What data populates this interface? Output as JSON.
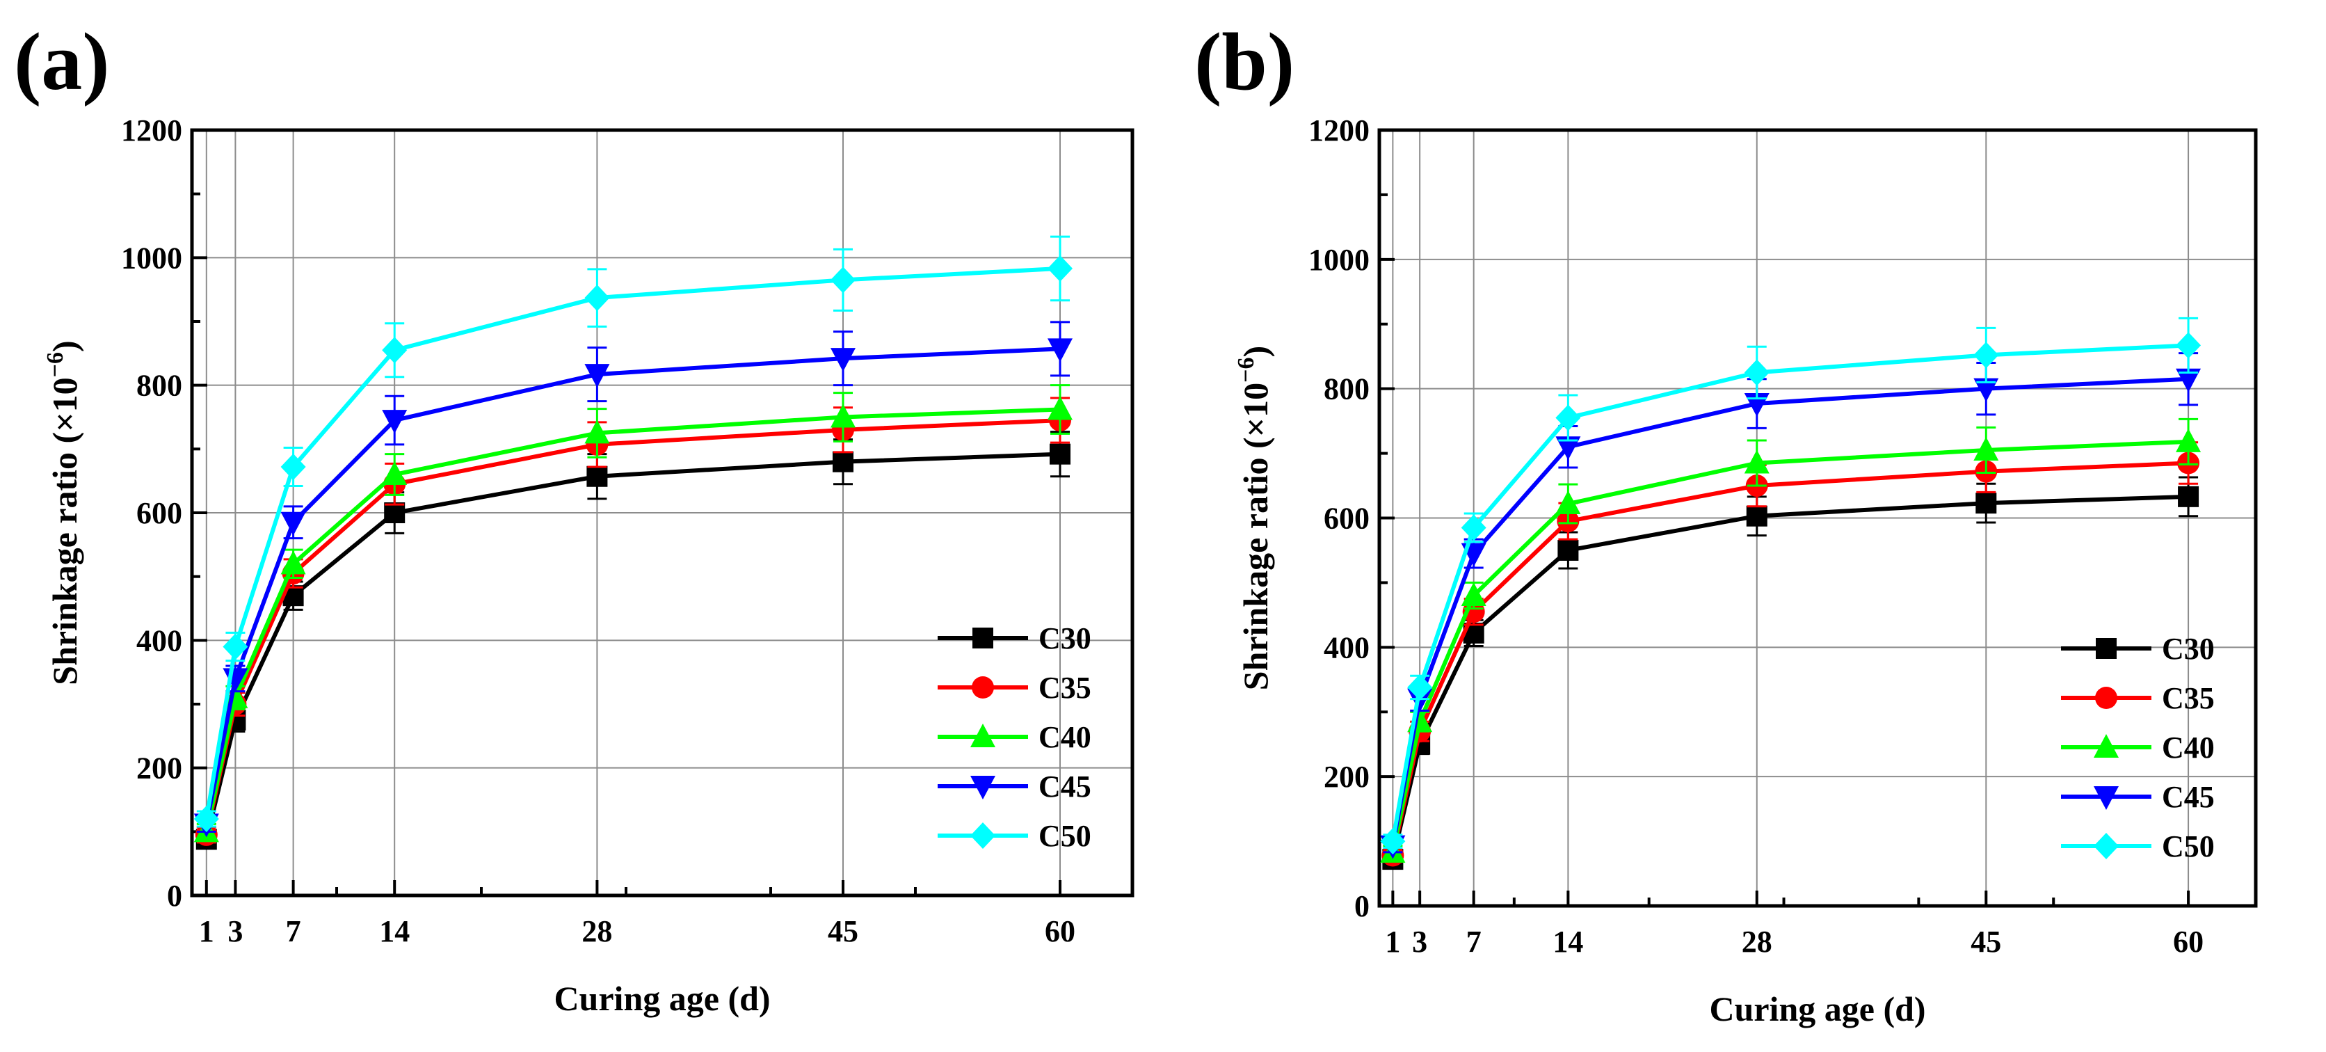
{
  "chart_data": [
    {
      "type": "line",
      "panel_label": "(a)",
      "xlabel": "Curing age (d)",
      "ylabel": "Shrinkage ratio (×10",
      "ylabel_exp": "−6",
      "ylabel_end": ")",
      "x": [
        1,
        3,
        7,
        14,
        28,
        45,
        60
      ],
      "xticks": [
        1,
        3,
        7,
        14,
        28,
        45,
        60
      ],
      "xlim": [
        0,
        65
      ],
      "ylim": [
        0,
        1200
      ],
      "yticks": [
        0,
        200,
        400,
        600,
        800,
        1000,
        1200
      ],
      "grid": true,
      "legend_position": "bottom-right",
      "series": [
        {
          "name": "C30",
          "color": "#000000",
          "marker": "square",
          "values": [
            88,
            275,
            470,
            600,
            657,
            680,
            692
          ],
          "errors": [
            12,
            18,
            22,
            32,
            35,
            35,
            35
          ]
        },
        {
          "name": "C35",
          "color": "#ff0000",
          "marker": "circle",
          "values": [
            95,
            300,
            505,
            645,
            707,
            730,
            745
          ],
          "errors": [
            12,
            18,
            22,
            32,
            35,
            35,
            35
          ]
        },
        {
          "name": "C40",
          "color": "#00ff00",
          "marker": "triangle-up",
          "values": [
            100,
            310,
            520,
            660,
            725,
            750,
            762
          ],
          "errors": [
            12,
            18,
            22,
            32,
            38,
            38,
            38
          ]
        },
        {
          "name": "C45",
          "color": "#0000ff",
          "marker": "triangle-down",
          "values": [
            112,
            340,
            585,
            745,
            817,
            842,
            857
          ],
          "errors": [
            12,
            20,
            25,
            38,
            42,
            42,
            42
          ]
        },
        {
          "name": "C50",
          "color": "#00ffff",
          "marker": "diamond",
          "values": [
            120,
            390,
            672,
            855,
            937,
            965,
            983
          ],
          "errors": [
            12,
            22,
            30,
            42,
            45,
            48,
            50
          ]
        }
      ]
    },
    {
      "type": "line",
      "panel_label": "(b)",
      "xlabel": "Curing age (d)",
      "ylabel": "Shrinkage ratio (×10",
      "ylabel_exp": "−6",
      "ylabel_end": ")",
      "x": [
        1,
        3,
        7,
        14,
        28,
        45,
        60
      ],
      "xticks": [
        1,
        3,
        7,
        14,
        28,
        45,
        60
      ],
      "xlim": [
        0,
        65
      ],
      "ylim": [
        0,
        1200
      ],
      "yticks": [
        0,
        200,
        400,
        600,
        800,
        1000,
        1200
      ],
      "grid": true,
      "legend_position": "bottom-right",
      "series": [
        {
          "name": "C30",
          "color": "#000000",
          "marker": "square",
          "values": [
            72,
            250,
            422,
            550,
            603,
            623,
            633
          ],
          "errors": [
            10,
            15,
            20,
            28,
            30,
            30,
            30
          ]
        },
        {
          "name": "C35",
          "color": "#ff0000",
          "marker": "circle",
          "values": [
            78,
            270,
            455,
            595,
            650,
            672,
            685
          ],
          "errors": [
            10,
            15,
            20,
            28,
            32,
            32,
            32
          ]
        },
        {
          "name": "C40",
          "color": "#00ff00",
          "marker": "triangle-up",
          "values": [
            83,
            285,
            480,
            622,
            685,
            705,
            718
          ],
          "errors": [
            10,
            15,
            20,
            30,
            35,
            35,
            35
          ]
        },
        {
          "name": "C45",
          "color": "#0000ff",
          "marker": "triangle-down",
          "values": [
            93,
            320,
            545,
            710,
            777,
            800,
            815
          ],
          "errors": [
            10,
            18,
            22,
            32,
            38,
            40,
            40
          ]
        },
        {
          "name": "C50",
          "color": "#00ffff",
          "marker": "diamond",
          "values": [
            100,
            338,
            585,
            755,
            825,
            852,
            867
          ],
          "errors": [
            10,
            18,
            22,
            35,
            40,
            42,
            42
          ]
        }
      ]
    }
  ]
}
